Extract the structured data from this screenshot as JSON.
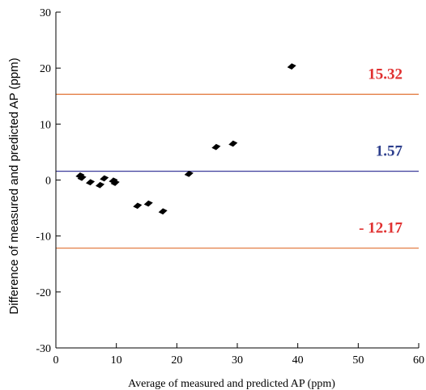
{
  "chart_data": {
    "type": "scatter",
    "title": "",
    "xlabel": "Average of measured and predicted AP (ppm)",
    "ylabel": "Difference of measured and predicted AP (ppm)",
    "xlim": [
      0,
      60
    ],
    "ylim": [
      -30,
      30
    ],
    "x_ticks": [
      "0",
      "10",
      "20",
      "30",
      "40",
      "50",
      "60"
    ],
    "y_ticks": [
      "30",
      "20",
      "10",
      "0",
      "-10",
      "-20",
      "-30"
    ],
    "grid": false,
    "points": [
      {
        "x": 4.0,
        "y": 0.8
      },
      {
        "x": 4.3,
        "y": 0.4
      },
      {
        "x": 5.7,
        "y": -0.4
      },
      {
        "x": 7.3,
        "y": -0.9
      },
      {
        "x": 8.0,
        "y": 0.3
      },
      {
        "x": 9.5,
        "y": -0.1
      },
      {
        "x": 9.8,
        "y": -0.5
      },
      {
        "x": 13.5,
        "y": -4.6
      },
      {
        "x": 15.3,
        "y": -4.2
      },
      {
        "x": 17.7,
        "y": -5.6
      },
      {
        "x": 22.0,
        "y": 1.1
      },
      {
        "x": 26.5,
        "y": 5.9
      },
      {
        "x": 29.3,
        "y": 6.5
      },
      {
        "x": 39.0,
        "y": 20.3
      }
    ],
    "reference_lines": [
      {
        "y": 15.32,
        "label": "15.32",
        "color": "#e07030",
        "label_color": "#e03030"
      },
      {
        "y": 1.57,
        "label": "1.57",
        "color": "#3a3a9a",
        "label_color": "#2c3e8c"
      },
      {
        "y": -12.17,
        "label": "- 12.17",
        "color": "#e07030",
        "label_color": "#e03030"
      }
    ],
    "marker_color": "#000000"
  }
}
